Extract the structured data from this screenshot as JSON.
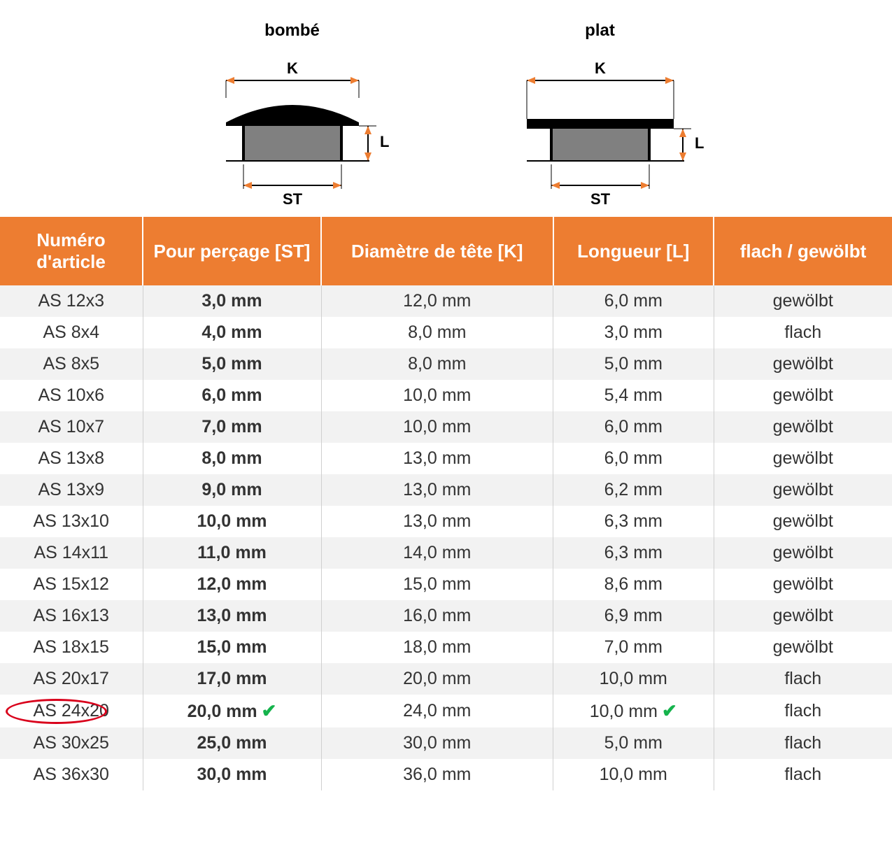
{
  "diagrams": {
    "left_title": "bombé",
    "right_title": "plat",
    "label_K": "K",
    "label_L": "L",
    "label_ST": "ST",
    "colors": {
      "cap_top": "#000000",
      "cap_body": "#808080",
      "arrow_line": "#000000",
      "arrow_head": "#ed7d31",
      "label_text": "#000000"
    }
  },
  "table": {
    "header_bg": "#ed7d31",
    "header_fg": "#ffffff",
    "row_odd_bg": "#f2f2f2",
    "row_even_bg": "#ffffff",
    "text_color": "#333333",
    "circle_color": "#d9001b",
    "check_color": "#15b34c",
    "columns": [
      "Numéro d'article",
      "Pour perçage [ST]",
      "Diamètre de tête [K]",
      "Longueur [L]",
      "flach / gewölbt"
    ],
    "rows": [
      {
        "article": "AS 12x3",
        "st": "3,0 mm",
        "k": "12,0 mm",
        "l": "6,0 mm",
        "type": "gewölbt",
        "circled": false,
        "checks": []
      },
      {
        "article": "AS 8x4",
        "st": "4,0 mm",
        "k": "8,0 mm",
        "l": "3,0 mm",
        "type": "flach",
        "circled": false,
        "checks": []
      },
      {
        "article": "AS 8x5",
        "st": "5,0 mm",
        "k": "8,0 mm",
        "l": "5,0 mm",
        "type": "gewölbt",
        "circled": false,
        "checks": []
      },
      {
        "article": "AS 10x6",
        "st": "6,0 mm",
        "k": "10,0 mm",
        "l": "5,4 mm",
        "type": "gewölbt",
        "circled": false,
        "checks": []
      },
      {
        "article": "AS 10x7",
        "st": "7,0 mm",
        "k": "10,0 mm",
        "l": "6,0 mm",
        "type": "gewölbt",
        "circled": false,
        "checks": []
      },
      {
        "article": "AS 13x8",
        "st": "8,0 mm",
        "k": "13,0 mm",
        "l": "6,0 mm",
        "type": "gewölbt",
        "circled": false,
        "checks": []
      },
      {
        "article": "AS 13x9",
        "st": "9,0 mm",
        "k": "13,0 mm",
        "l": "6,2 mm",
        "type": "gewölbt",
        "circled": false,
        "checks": []
      },
      {
        "article": "AS 13x10",
        "st": "10,0 mm",
        "k": "13,0 mm",
        "l": "6,3 mm",
        "type": "gewölbt",
        "circled": false,
        "checks": []
      },
      {
        "article": "AS 14x11",
        "st": "11,0 mm",
        "k": "14,0 mm",
        "l": "6,3 mm",
        "type": "gewölbt",
        "circled": false,
        "checks": []
      },
      {
        "article": "AS 15x12",
        "st": "12,0 mm",
        "k": "15,0 mm",
        "l": "8,6 mm",
        "type": "gewölbt",
        "circled": false,
        "checks": []
      },
      {
        "article": "AS 16x13",
        "st": "13,0 mm",
        "k": "16,0 mm",
        "l": "6,9 mm",
        "type": "gewölbt",
        "circled": false,
        "checks": []
      },
      {
        "article": "AS 18x15",
        "st": "15,0 mm",
        "k": "18,0 mm",
        "l": "7,0 mm",
        "type": "gewölbt",
        "circled": false,
        "checks": []
      },
      {
        "article": "AS 20x17",
        "st": "17,0 mm",
        "k": "20,0 mm",
        "l": "10,0 mm",
        "type": "flach",
        "circled": false,
        "checks": []
      },
      {
        "article": "AS 24x20",
        "st": "20,0 mm",
        "k": "24,0 mm",
        "l": "10,0 mm",
        "type": "flach",
        "circled": true,
        "checks": [
          "st",
          "l"
        ]
      },
      {
        "article": "AS 30x25",
        "st": "25,0 mm",
        "k": "30,0 mm",
        "l": "5,0 mm",
        "type": "flach",
        "circled": false,
        "checks": []
      },
      {
        "article": "AS 36x30",
        "st": "30,0 mm",
        "k": "36,0 mm",
        "l": "10,0 mm",
        "type": "flach",
        "circled": false,
        "checks": []
      }
    ]
  }
}
